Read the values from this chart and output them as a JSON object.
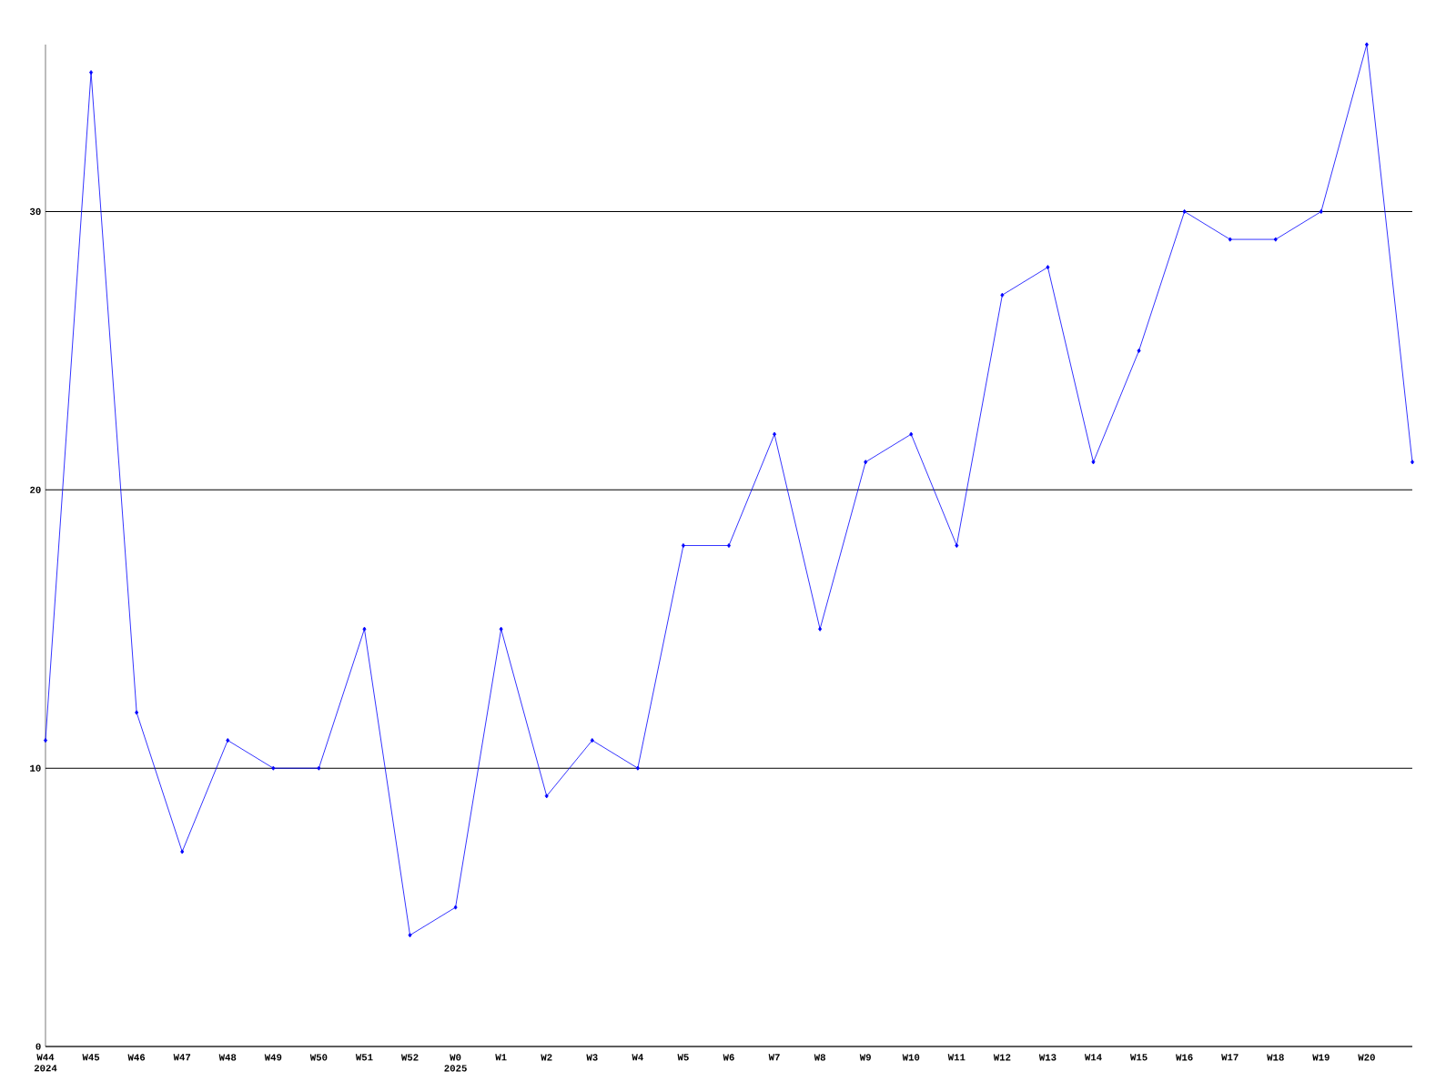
{
  "chart_data": {
    "type": "line",
    "categories": [
      "W44 2024",
      "W45",
      "W46",
      "W47",
      "W48",
      "W49",
      "W50",
      "W51",
      "W52",
      "W0 2025",
      "W1",
      "W2",
      "W3",
      "W4",
      "W5",
      "W6",
      "W7",
      "W8",
      "W9",
      "W10",
      "W11",
      "W12",
      "W13",
      "W14",
      "W15",
      "W16",
      "W17",
      "W18",
      "W19",
      "W20",
      null
    ],
    "values": [
      11,
      35,
      12,
      7,
      11,
      10,
      10,
      15,
      4,
      5,
      15,
      9,
      11,
      10,
      18,
      18,
      22,
      15,
      21,
      22,
      18,
      27,
      28,
      21,
      25,
      30,
      29,
      29,
      30,
      36,
      21
    ],
    "color": "#0000ff",
    "marker": "diamond",
    "ylim": [
      0,
      36
    ],
    "yticks": [
      0,
      10,
      20,
      30
    ],
    "grid": "y"
  }
}
